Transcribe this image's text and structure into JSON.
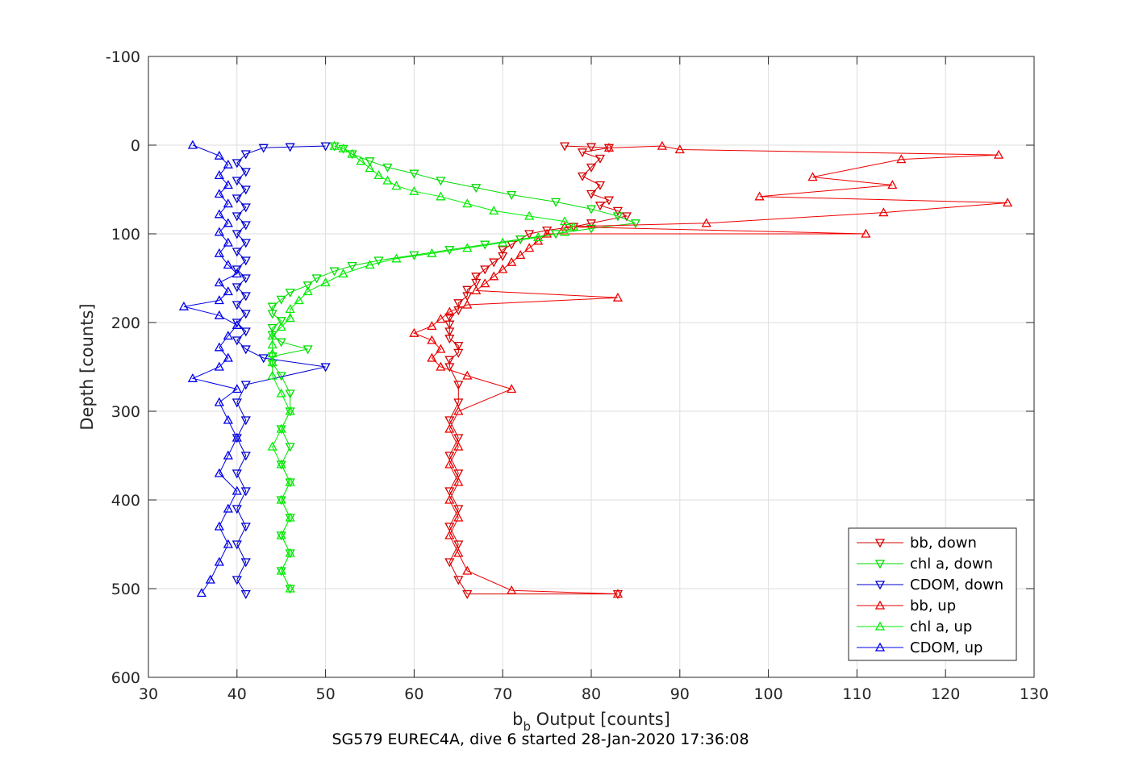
{
  "chart_data": {
    "type": "scatter",
    "xlabel_main": "b",
    "xlabel_sub": "b",
    "xlabel_rest": " Output [counts]",
    "ylabel": "Depth [counts]",
    "caption": "SG579 EUREC4A, dive 6 started 28-Jan-2020 17:36:08",
    "xlim": [
      30,
      130
    ],
    "ylim": [
      -100,
      600
    ],
    "y_reversed": true,
    "grid": true,
    "legend_position": "bottom-right",
    "x_ticks": [
      "30",
      "40",
      "50",
      "60",
      "70",
      "80",
      "90",
      "100",
      "110",
      "120",
      "130"
    ],
    "y_ticks": [
      "-100",
      "0",
      "100",
      "200",
      "300",
      "400",
      "500",
      "600"
    ],
    "series": [
      {
        "name": "bb, down",
        "color": "#d40000",
        "marker": "down",
        "points": [
          [
            77,
            1
          ],
          [
            80,
            2
          ],
          [
            82,
            3
          ],
          [
            79,
            8
          ],
          [
            81,
            15
          ],
          [
            80,
            25
          ],
          [
            79,
            35
          ],
          [
            81,
            45
          ],
          [
            80,
            55
          ],
          [
            82,
            62
          ],
          [
            81,
            68
          ],
          [
            83,
            74
          ],
          [
            84,
            80
          ],
          [
            80,
            88
          ],
          [
            78,
            92
          ],
          [
            75,
            96
          ],
          [
            73,
            100
          ],
          [
            72,
            106
          ],
          [
            71,
            112
          ],
          [
            70,
            118
          ],
          [
            70,
            125
          ],
          [
            69,
            132
          ],
          [
            68,
            140
          ],
          [
            67,
            148
          ],
          [
            67,
            155
          ],
          [
            66,
            163
          ],
          [
            66,
            170
          ],
          [
            65,
            178
          ],
          [
            65,
            186
          ],
          [
            64,
            194
          ],
          [
            64,
            202
          ],
          [
            64,
            210
          ],
          [
            64,
            218
          ],
          [
            65,
            226
          ],
          [
            65,
            234
          ],
          [
            64,
            242
          ],
          [
            64,
            250
          ],
          [
            65,
            270
          ],
          [
            65,
            290
          ],
          [
            64,
            310
          ],
          [
            65,
            330
          ],
          [
            64,
            350
          ],
          [
            65,
            370
          ],
          [
            64,
            390
          ],
          [
            65,
            410
          ],
          [
            64,
            430
          ],
          [
            65,
            450
          ],
          [
            64,
            470
          ],
          [
            65,
            490
          ],
          [
            66,
            506
          ],
          [
            83,
            506
          ]
        ]
      },
      {
        "name": "chl a, down",
        "color": "#00dd00",
        "marker": "down",
        "points": [
          [
            51,
            1
          ],
          [
            52,
            4
          ],
          [
            53,
            10
          ],
          [
            55,
            18
          ],
          [
            57,
            25
          ],
          [
            60,
            32
          ],
          [
            63,
            40
          ],
          [
            67,
            48
          ],
          [
            71,
            56
          ],
          [
            76,
            64
          ],
          [
            80,
            72
          ],
          [
            83,
            80
          ],
          [
            85,
            88
          ],
          [
            80,
            94
          ],
          [
            76,
            100
          ],
          [
            72,
            106
          ],
          [
            68,
            112
          ],
          [
            64,
            118
          ],
          [
            60,
            124
          ],
          [
            56,
            130
          ],
          [
            53,
            136
          ],
          [
            51,
            142
          ],
          [
            49,
            150
          ],
          [
            48,
            158
          ],
          [
            46,
            166
          ],
          [
            45,
            174
          ],
          [
            44,
            182
          ],
          [
            44,
            190
          ],
          [
            45,
            198
          ],
          [
            44,
            206
          ],
          [
            44,
            214
          ],
          [
            45,
            222
          ],
          [
            48,
            230
          ],
          [
            44,
            238
          ],
          [
            44,
            246
          ],
          [
            45,
            260
          ],
          [
            46,
            280
          ],
          [
            46,
            300
          ],
          [
            45,
            320
          ],
          [
            46,
            340
          ],
          [
            45,
            360
          ],
          [
            46,
            380
          ],
          [
            45,
            400
          ],
          [
            46,
            420
          ],
          [
            45,
            440
          ],
          [
            46,
            460
          ],
          [
            45,
            480
          ],
          [
            46,
            500
          ]
        ]
      },
      {
        "name": "CDOM, down",
        "color": "#0000d0",
        "marker": "down",
        "points": [
          [
            50,
            1
          ],
          [
            46,
            2
          ],
          [
            43,
            3
          ],
          [
            41,
            10
          ],
          [
            40,
            20
          ],
          [
            41,
            30
          ],
          [
            40,
            40
          ],
          [
            41,
            50
          ],
          [
            40,
            60
          ],
          [
            41,
            70
          ],
          [
            40,
            80
          ],
          [
            41,
            90
          ],
          [
            40,
            100
          ],
          [
            41,
            110
          ],
          [
            40,
            120
          ],
          [
            41,
            130
          ],
          [
            40,
            140
          ],
          [
            41,
            150
          ],
          [
            40,
            160
          ],
          [
            41,
            170
          ],
          [
            40,
            180
          ],
          [
            41,
            190
          ],
          [
            40,
            200
          ],
          [
            41,
            210
          ],
          [
            40,
            220
          ],
          [
            41,
            230
          ],
          [
            43,
            240
          ],
          [
            50,
            250
          ],
          [
            41,
            270
          ],
          [
            40,
            290
          ],
          [
            41,
            310
          ],
          [
            40,
            330
          ],
          [
            41,
            350
          ],
          [
            40,
            370
          ],
          [
            41,
            390
          ],
          [
            40,
            410
          ],
          [
            41,
            430
          ],
          [
            40,
            450
          ],
          [
            41,
            470
          ],
          [
            40,
            490
          ],
          [
            41,
            506
          ]
        ]
      },
      {
        "name": "bb, up",
        "color": "#ee0000",
        "marker": "up",
        "points": [
          [
            83,
            506
          ],
          [
            71,
            502
          ],
          [
            66,
            480
          ],
          [
            65,
            460
          ],
          [
            64,
            440
          ],
          [
            65,
            420
          ],
          [
            64,
            400
          ],
          [
            65,
            380
          ],
          [
            64,
            360
          ],
          [
            65,
            340
          ],
          [
            64,
            320
          ],
          [
            65,
            300
          ],
          [
            71,
            275
          ],
          [
            66,
            260
          ],
          [
            63,
            250
          ],
          [
            62,
            240
          ],
          [
            63,
            230
          ],
          [
            62,
            220
          ],
          [
            60,
            212
          ],
          [
            62,
            204
          ],
          [
            63,
            196
          ],
          [
            64,
            188
          ],
          [
            66,
            180
          ],
          [
            83,
            172
          ],
          [
            67,
            164
          ],
          [
            68,
            156
          ],
          [
            69,
            148
          ],
          [
            70,
            140
          ],
          [
            71,
            132
          ],
          [
            72,
            124
          ],
          [
            73,
            116
          ],
          [
            74,
            108
          ],
          [
            75,
            100
          ],
          [
            111,
            100
          ],
          [
            77,
            92
          ],
          [
            93,
            88
          ],
          [
            113,
            76
          ],
          [
            127,
            65
          ],
          [
            99,
            58
          ],
          [
            114,
            45
          ],
          [
            105,
            36
          ],
          [
            115,
            16
          ],
          [
            126,
            11
          ],
          [
            90,
            5
          ],
          [
            88,
            1
          ],
          [
            82,
            3
          ]
        ]
      },
      {
        "name": "chl a, up",
        "color": "#00ee00",
        "marker": "up",
        "points": [
          [
            46,
            500
          ],
          [
            45,
            480
          ],
          [
            46,
            460
          ],
          [
            45,
            440
          ],
          [
            46,
            420
          ],
          [
            45,
            400
          ],
          [
            46,
            380
          ],
          [
            45,
            360
          ],
          [
            44,
            340
          ],
          [
            45,
            320
          ],
          [
            46,
            300
          ],
          [
            45,
            280
          ],
          [
            44,
            260
          ],
          [
            44,
            245
          ],
          [
            44,
            235
          ],
          [
            44,
            225
          ],
          [
            44,
            215
          ],
          [
            45,
            205
          ],
          [
            46,
            195
          ],
          [
            46,
            185
          ],
          [
            47,
            175
          ],
          [
            48,
            165
          ],
          [
            50,
            155
          ],
          [
            52,
            145
          ],
          [
            55,
            135
          ],
          [
            58,
            128
          ],
          [
            62,
            122
          ],
          [
            66,
            116
          ],
          [
            70,
            110
          ],
          [
            74,
            104
          ],
          [
            77,
            98
          ],
          [
            78,
            92
          ],
          [
            77,
            86
          ],
          [
            73,
            80
          ],
          [
            69,
            74
          ],
          [
            66,
            66
          ],
          [
            63,
            58
          ],
          [
            60,
            52
          ],
          [
            58,
            46
          ],
          [
            57,
            40
          ],
          [
            56,
            34
          ],
          [
            55,
            26
          ],
          [
            54,
            18
          ],
          [
            53,
            10
          ],
          [
            52,
            4
          ],
          [
            51,
            1
          ]
        ]
      },
      {
        "name": "CDOM, up",
        "color": "#0000ee",
        "marker": "up",
        "points": [
          [
            36,
            505
          ],
          [
            37,
            490
          ],
          [
            38,
            470
          ],
          [
            39,
            450
          ],
          [
            38,
            430
          ],
          [
            39,
            410
          ],
          [
            40,
            390
          ],
          [
            38,
            370
          ],
          [
            39,
            350
          ],
          [
            40,
            330
          ],
          [
            39,
            310
          ],
          [
            38,
            290
          ],
          [
            40,
            275
          ],
          [
            35,
            263
          ],
          [
            38,
            250
          ],
          [
            39,
            240
          ],
          [
            38,
            228
          ],
          [
            39,
            215
          ],
          [
            40,
            203
          ],
          [
            38,
            192
          ],
          [
            34,
            182
          ],
          [
            38,
            175
          ],
          [
            39,
            165
          ],
          [
            38,
            155
          ],
          [
            40,
            145
          ],
          [
            39,
            135
          ],
          [
            38,
            122
          ],
          [
            39,
            110
          ],
          [
            38,
            98
          ],
          [
            39,
            88
          ],
          [
            38,
            78
          ],
          [
            39,
            66
          ],
          [
            38,
            55
          ],
          [
            39,
            45
          ],
          [
            38,
            34
          ],
          [
            39,
            22
          ],
          [
            38,
            12
          ],
          [
            35,
            0
          ]
        ]
      }
    ]
  }
}
